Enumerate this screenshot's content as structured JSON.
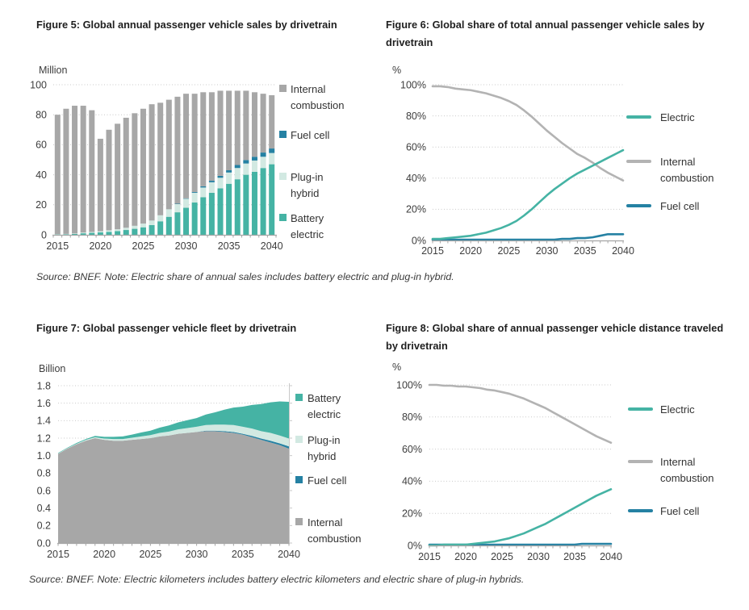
{
  "source_notes": {
    "note1": "Source: BNEF. Note: Electric share of annual sales includes battery electric and plug-in hybrid.",
    "note2": "Source: BNEF. Note: Electric kilometers includes battery electric kilometers and electric share of plug-in hybrids."
  },
  "colors": {
    "teal": "#45b3a4",
    "mint": "#d2e9e2",
    "steel_blue": "#2581a3",
    "gray_bar": "#a7a7a7",
    "gray_line": "#b3b3b3",
    "gridline": "#c9c9c9",
    "axis_line": "#a6a6a6",
    "tick_text": "#3d3d3d",
    "title_text": "#1f1f1f"
  },
  "chart_data": [
    {
      "id": "figure-5",
      "type": "bar",
      "stacked": true,
      "title": "Figure 5: Global annual passenger vehicle sales by drivetrain",
      "unit_label": "Million",
      "x": [
        2015,
        2016,
        2017,
        2018,
        2019,
        2020,
        2021,
        2022,
        2023,
        2024,
        2025,
        2026,
        2027,
        2028,
        2029,
        2030,
        2031,
        2032,
        2033,
        2034,
        2035,
        2036,
        2037,
        2038,
        2039,
        2040
      ],
      "x_tick_labels": [
        2015,
        2020,
        2025,
        2030,
        2035,
        2040
      ],
      "ylim": [
        0,
        100
      ],
      "ytick_step": 20,
      "yformat": "int",
      "grid": true,
      "series": [
        {
          "name": "Battery electric",
          "color": "#45b3a4",
          "values": [
            0.3,
            0.4,
            0.6,
            1.0,
            1.3,
            1.6,
            2.0,
            2.5,
            3.2,
            4.0,
            5.0,
            6.5,
            9.0,
            12.0,
            15.0,
            18.0,
            21.5,
            25.0,
            28.0,
            31.0,
            34.0,
            37.0,
            40.0,
            42.0,
            44.5,
            47.0
          ]
        },
        {
          "name": "Plug-in hybrid",
          "color": "#d2e9e2",
          "values": [
            0.1,
            0.2,
            0.3,
            0.5,
            0.6,
            0.8,
            1.0,
            1.2,
            1.5,
            2.0,
            2.5,
            3.0,
            4.0,
            5.0,
            5.5,
            6.0,
            6.5,
            6.5,
            7.0,
            7.0,
            7.5,
            7.5,
            7.5,
            7.5,
            7.5,
            7.5
          ]
        },
        {
          "name": "Fuel cell",
          "color": "#2581a3",
          "values": [
            0,
            0,
            0,
            0,
            0,
            0,
            0,
            0,
            0,
            0,
            0,
            0,
            0,
            0,
            0.2,
            0.3,
            0.5,
            0.8,
            1.0,
            1.3,
            1.5,
            2.0,
            2.3,
            2.5,
            2.8,
            3.0
          ]
        },
        {
          "name": "Internal combustion",
          "color": "#a7a7a7",
          "values": [
            79.6,
            83.4,
            85.1,
            84.5,
            81.1,
            61.6,
            67.0,
            70.3,
            73.3,
            75.0,
            76.5,
            77.5,
            75.0,
            73.0,
            71.3,
            69.7,
            65.5,
            62.7,
            59.0,
            56.7,
            53.0,
            49.5,
            46.2,
            43.0,
            39.2,
            35.5
          ]
        }
      ],
      "legend": [
        {
          "label": "Internal\ncombustion",
          "swatch": "square",
          "color": "#a7a7a7"
        },
        {
          "label": "Fuel cell",
          "swatch": "square",
          "color": "#2581a3"
        },
        {
          "label": "Plug-in\nhybrid",
          "swatch": "square",
          "color": "#d2e9e2"
        },
        {
          "label": "Battery\nelectric",
          "swatch": "square",
          "color": "#45b3a4"
        }
      ]
    },
    {
      "id": "figure-6",
      "type": "line",
      "title": "Figure 6: Global share of total annual passenger vehicle sales by drivetrain",
      "unit_label": "%",
      "x": [
        2015,
        2016,
        2017,
        2018,
        2019,
        2020,
        2021,
        2022,
        2023,
        2024,
        2025,
        2026,
        2027,
        2028,
        2029,
        2030,
        2031,
        2032,
        2033,
        2034,
        2035,
        2036,
        2037,
        2038,
        2039,
        2040
      ],
      "x_tick_labels": [
        2015,
        2020,
        2025,
        2030,
        2035,
        2040
      ],
      "ylim": [
        0,
        100
      ],
      "ytick_step": 20,
      "yformat": "pct",
      "grid": true,
      "series": [
        {
          "name": "Internal combustion",
          "color": "#b3b3b3",
          "values": [
            99,
            99,
            98.5,
            97.5,
            97,
            96.5,
            95.5,
            94.5,
            93,
            91.5,
            89.5,
            87,
            83.5,
            79.5,
            75,
            70.5,
            66.5,
            62.5,
            59,
            55.5,
            53,
            50,
            46.5,
            43.5,
            41,
            38.5
          ]
        },
        {
          "name": "Fuel cell",
          "color": "#2581a3",
          "values": [
            0.5,
            0.5,
            0.5,
            0.5,
            0.5,
            0.5,
            0.5,
            0.5,
            0.5,
            0.5,
            0.5,
            0.5,
            0.5,
            0.5,
            0.5,
            0.5,
            0.5,
            1,
            1,
            1.5,
            1.5,
            2,
            3,
            4,
            4,
            4
          ]
        },
        {
          "name": "Electric",
          "color": "#45b3a4",
          "values": [
            1,
            1,
            1.5,
            2,
            2.5,
            3,
            4,
            5,
            6.5,
            8,
            10,
            12.5,
            16,
            20,
            24.5,
            29,
            33,
            36.5,
            40,
            43,
            45.5,
            48,
            50.5,
            53,
            55.5,
            58
          ]
        }
      ],
      "legend": [
        {
          "label": "Electric",
          "swatch": "line",
          "color": "#45b3a4"
        },
        {
          "label": "Internal\ncombustion",
          "swatch": "line",
          "color": "#b3b3b3"
        },
        {
          "label": "Fuel cell",
          "swatch": "line",
          "color": "#2581a3"
        }
      ]
    },
    {
      "id": "figure-7",
      "type": "area",
      "stacked": true,
      "title": "Figure 7: Global passenger vehicle fleet by drivetrain",
      "unit_label": "Billion",
      "x": [
        2015,
        2016,
        2017,
        2018,
        2019,
        2020,
        2021,
        2022,
        2023,
        2024,
        2025,
        2026,
        2027,
        2028,
        2029,
        2030,
        2031,
        2032,
        2033,
        2034,
        2035,
        2036,
        2037,
        2038,
        2039,
        2040
      ],
      "x_tick_labels": [
        2015,
        2020,
        2025,
        2030,
        2035,
        2040
      ],
      "ylim": [
        0,
        1.8
      ],
      "ytick_step": 0.2,
      "yformat": "1dp",
      "grid": true,
      "series": [
        {
          "name": "Internal combustion",
          "color": "#a7a7a7",
          "values": [
            1.02,
            1.08,
            1.13,
            1.17,
            1.2,
            1.18,
            1.17,
            1.17,
            1.18,
            1.19,
            1.2,
            1.22,
            1.23,
            1.25,
            1.26,
            1.27,
            1.28,
            1.28,
            1.27,
            1.26,
            1.24,
            1.21,
            1.18,
            1.15,
            1.12,
            1.08
          ]
        },
        {
          "name": "Fuel cell",
          "color": "#2581a3",
          "values": [
            0,
            0,
            0,
            0,
            0,
            0,
            0,
            0,
            0,
            0,
            0,
            0,
            0,
            0,
            0,
            0,
            0.005,
            0.005,
            0.01,
            0.01,
            0.01,
            0.015,
            0.015,
            0.02,
            0.02,
            0.025
          ]
        },
        {
          "name": "Plug-in hybrid",
          "color": "#d2e9e2",
          "values": [
            0.005,
            0.005,
            0.005,
            0.01,
            0.01,
            0.015,
            0.02,
            0.02,
            0.025,
            0.03,
            0.035,
            0.04,
            0.045,
            0.05,
            0.055,
            0.06,
            0.065,
            0.07,
            0.075,
            0.08,
            0.08,
            0.085,
            0.085,
            0.09,
            0.09,
            0.09
          ]
        },
        {
          "name": "Battery electric",
          "color": "#45b3a4",
          "values": [
            0.005,
            0.005,
            0.01,
            0.01,
            0.015,
            0.02,
            0.025,
            0.03,
            0.035,
            0.045,
            0.05,
            0.06,
            0.07,
            0.08,
            0.09,
            0.1,
            0.12,
            0.14,
            0.17,
            0.2,
            0.23,
            0.27,
            0.31,
            0.35,
            0.39,
            0.42
          ]
        }
      ],
      "legend": [
        {
          "label": "Battery\nelectric",
          "swatch": "square",
          "color": "#45b3a4"
        },
        {
          "label": "Plug-in\nhybrid",
          "swatch": "square",
          "color": "#d2e9e2"
        },
        {
          "label": "Fuel cell",
          "swatch": "square",
          "color": "#2581a3"
        },
        {
          "label": "Internal\ncombustion",
          "swatch": "square",
          "color": "#a7a7a7"
        }
      ]
    },
    {
      "id": "figure-8",
      "type": "line",
      "title": "Figure 8: Global share of annual passenger vehicle distance traveled by drivetrain",
      "unit_label": "%",
      "x": [
        2015,
        2016,
        2017,
        2018,
        2019,
        2020,
        2021,
        2022,
        2023,
        2024,
        2025,
        2026,
        2027,
        2028,
        2029,
        2030,
        2031,
        2032,
        2033,
        2034,
        2035,
        2036,
        2037,
        2038,
        2039,
        2040
      ],
      "x_tick_labels": [
        2015,
        2020,
        2025,
        2030,
        2035,
        2040
      ],
      "ylim": [
        0,
        100
      ],
      "ytick_step": 20,
      "yformat": "pct",
      "grid": true,
      "series": [
        {
          "name": "Internal combustion",
          "color": "#b3b3b3",
          "values": [
            100,
            100,
            99.5,
            99.5,
            99,
            99,
            98.5,
            98,
            97,
            96.5,
            95.5,
            94.5,
            93,
            91.5,
            89.5,
            87.5,
            85.5,
            83,
            80.5,
            78,
            75.5,
            73,
            70.5,
            68,
            66,
            64
          ]
        },
        {
          "name": "Fuel cell",
          "color": "#2581a3",
          "values": [
            0.5,
            0.5,
            0.5,
            0.5,
            0.5,
            0.5,
            0.5,
            0.5,
            0.5,
            0.5,
            0.5,
            0.5,
            0.5,
            0.5,
            0.5,
            0.5,
            0.5,
            0.5,
            0.5,
            0.5,
            0.5,
            1,
            1,
            1,
            1,
            1
          ]
        },
        {
          "name": "Electric",
          "color": "#45b3a4",
          "values": [
            0,
            0,
            0.5,
            0.5,
            0.5,
            0.5,
            1,
            1.5,
            2,
            2.5,
            3.5,
            4.5,
            6,
            7.5,
            9.5,
            11.5,
            13.5,
            16,
            18.5,
            21,
            23.5,
            26,
            28.5,
            31,
            33,
            35
          ]
        }
      ],
      "legend": [
        {
          "label": "Electric",
          "swatch": "line",
          "color": "#45b3a4"
        },
        {
          "label": "Internal\ncombustion",
          "swatch": "line",
          "color": "#b3b3b3"
        },
        {
          "label": "Fuel cell",
          "swatch": "line",
          "color": "#2581a3"
        }
      ]
    }
  ]
}
